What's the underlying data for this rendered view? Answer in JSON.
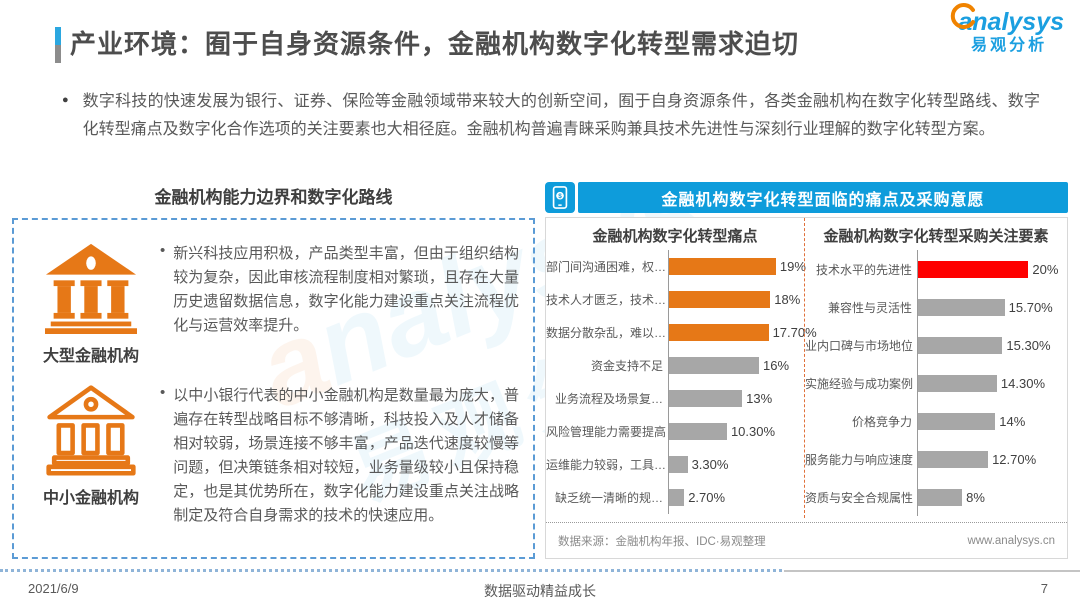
{
  "header": {
    "title": "产业环境：囿于自身资源条件，金融机构数字化转型需求迫切"
  },
  "logo": {
    "brand_en": "analysys",
    "brand_cn": "易观分析"
  },
  "intro": {
    "bullet": "●",
    "text": "数字科技的快速发展为银行、证券、保险等金融领域带来较大的创新空间，囿于自身资源条件，各类金融机构在数字化转型路线、数字化转型痛点及数字化合作选项的关注要素也大相径庭。金融机构普遍青睐采购兼具技术先进性与深刻行业理解的数字化转型方案。"
  },
  "left_panel": {
    "title": "金融机构能力边界和数字化路线",
    "items": [
      {
        "icon": "bank-solid-icon",
        "bullet": "•",
        "label": "大型金融机构",
        "text": "新兴科技应用积极，产品类型丰富，但由于组织结构较为复杂，因此审核流程制度相对繁琐，且存在大量历史遗留数据信息，数字化能力建设重点关注流程优化与运营效率提升。"
      },
      {
        "icon": "bank-outline-icon",
        "bullet": "•",
        "label": "中小金融机构",
        "text": "以中小银行代表的中小金融机构是数量最为庞大，普遍存在转型战略目标不够清晰，科技投入及人才储备相对较弱，场景连接不够丰富，产品迭代速度较慢等问题，但决策链条相对较短，业务量级较小且保持稳定，也是其优势所在，数字化能力建设重点关注战略制定及符合自身需求的技术的快速应用。"
      }
    ]
  },
  "right_panel": {
    "header": "金融机构数字化转型面临的痛点及采购意愿",
    "source": "数据来源：金融机构年报、IDC·易观整理",
    "website": "www.analysys.cn"
  },
  "chart_data": [
    {
      "type": "bar",
      "orientation": "horizontal",
      "title": "金融机构数字化转型痛点",
      "categories": [
        "部门间沟通困难，权…",
        "技术人才匮乏，技术…",
        "数据分散杂乱，难以…",
        "资金支持不足",
        "业务流程及场景复…",
        "风险管理能力需要提高",
        "运维能力较弱，工具…",
        "缺乏统一清晰的规…"
      ],
      "values": [
        19,
        18,
        17.7,
        16,
        13,
        10.3,
        3.3,
        2.7
      ],
      "labels": [
        "19%",
        "18%",
        "17.70%",
        "16%",
        "13%",
        "10.30%",
        "3.30%",
        "2.70%"
      ],
      "bar_colors": [
        "#E67817",
        "#E67817",
        "#E67817",
        "#A7A7A7",
        "#A7A7A7",
        "#A7A7A7",
        "#A7A7A7",
        "#A7A7A7"
      ],
      "xlim": [
        0,
        24
      ],
      "grid": false,
      "legend": "none"
    },
    {
      "type": "bar",
      "orientation": "horizontal",
      "title": "金融机构数字化转型采购关注要素",
      "categories": [
        "技术水平的先进性",
        "兼容性与灵活性",
        "业内口碑与市场地位",
        "实施经验与成功案例",
        "价格竞争力",
        "服务能力与响应速度",
        "资质与安全合规属性"
      ],
      "values": [
        20,
        15.7,
        15.3,
        14.3,
        14,
        12.7,
        8
      ],
      "labels": [
        "20%",
        "15.70%",
        "15.30%",
        "14.30%",
        "14%",
        "12.70%",
        "8%"
      ],
      "bar_colors": [
        "#FE0000",
        "#A7A7A7",
        "#A7A7A7",
        "#A7A7A7",
        "#A7A7A7",
        "#A7A7A7",
        "#A7A7A7"
      ],
      "xlim": [
        0,
        27
      ],
      "grid": false,
      "legend": "none"
    }
  ],
  "footer": {
    "date": "2021/6/9",
    "center": "数据驱动精益成长",
    "page": "7"
  },
  "colors": {
    "accent_blue": "#0E9CDB",
    "orange": "#E67817",
    "gray_bar": "#A7A7A7",
    "red": "#FE0000",
    "dashed_box_blue": "#5B9BD5"
  }
}
